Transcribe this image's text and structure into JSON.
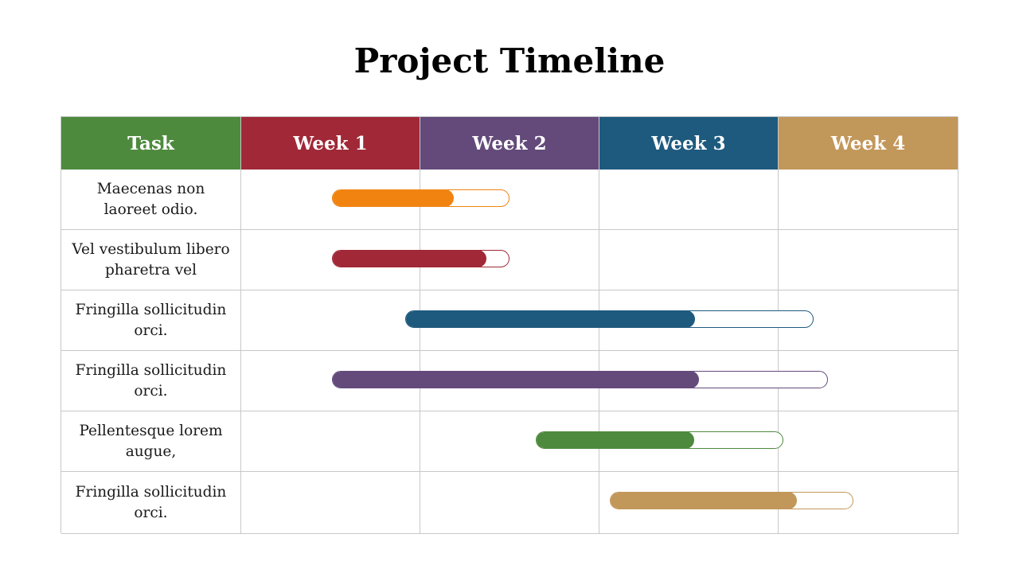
{
  "title": "Project Timeline",
  "columns": [
    {
      "label": "Task",
      "color": "#4e8a3e"
    },
    {
      "label": "Week 1",
      "color": "#a02837"
    },
    {
      "label": "Week 2",
      "color": "#634a7a"
    },
    {
      "label": "Week 3",
      "color": "#1e5a7e"
    },
    {
      "label": "Week 4",
      "color": "#c2975a"
    }
  ],
  "tasks": [
    {
      "name": "Maecenas non laoreet odio.",
      "start_week": 1.51,
      "end_week": 2.5,
      "progress": 0.69,
      "color": "#f18411"
    },
    {
      "name": "Vel vestibulum libero pharetra vel",
      "start_week": 1.51,
      "end_week": 2.5,
      "progress": 0.87,
      "color": "#a02837"
    },
    {
      "name": "Fringilla sollicitudin orci.",
      "start_week": 1.92,
      "end_week": 4.2,
      "progress": 0.71,
      "color": "#1e5a7e"
    },
    {
      "name": "Fringilla sollicitudin orci.",
      "start_week": 1.51,
      "end_week": 4.28,
      "progress": 0.74,
      "color": "#634a7a"
    },
    {
      "name": "Pellentesque lorem augue,",
      "start_week": 2.65,
      "end_week": 4.03,
      "progress": 0.64,
      "color": "#4e8a3e"
    },
    {
      "name": "Fringilla sollicitudin orci.",
      "start_week": 3.06,
      "end_week": 4.42,
      "progress": 0.77,
      "color": "#c2975a"
    }
  ]
}
